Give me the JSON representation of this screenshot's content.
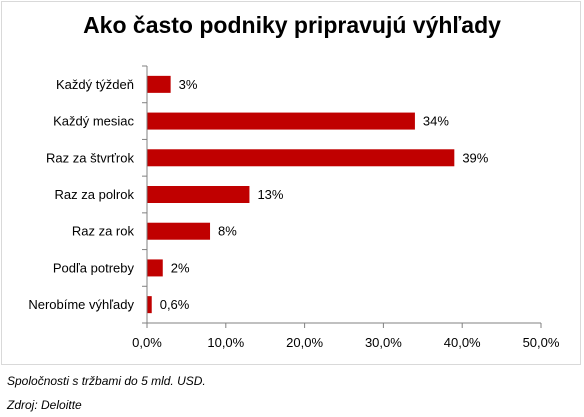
{
  "chart_data": {
    "type": "bar",
    "orientation": "horizontal",
    "title": "Ako často podniky pripravujú výhľady",
    "categories": [
      "Každý týždeň",
      "Každý mesiac",
      "Raz za štvrťrok",
      "Raz za polrok",
      "Raz za rok",
      "Podľa potreby",
      "Nerobíme výhľady"
    ],
    "values": [
      3,
      34,
      39,
      13,
      8,
      2,
      0.6
    ],
    "data_labels": [
      "3%",
      "34%",
      "39%",
      "13%",
      "8%",
      "2%",
      "0,6%"
    ],
    "xlim": [
      0,
      50
    ],
    "x_ticks": [
      0,
      10,
      20,
      30,
      40,
      50
    ],
    "x_tick_labels": [
      "0,0%",
      "10,0%",
      "20,0%",
      "30,0%",
      "40,0%",
      "50,0%"
    ],
    "xlabel": "",
    "ylabel": "",
    "grid": false,
    "legend": "none",
    "bar_color": "#c00000"
  },
  "notes": {
    "line1": "Spoločnosti s tržbami do 5 mld. USD.",
    "line2": "Zdroj: Deloitte"
  }
}
